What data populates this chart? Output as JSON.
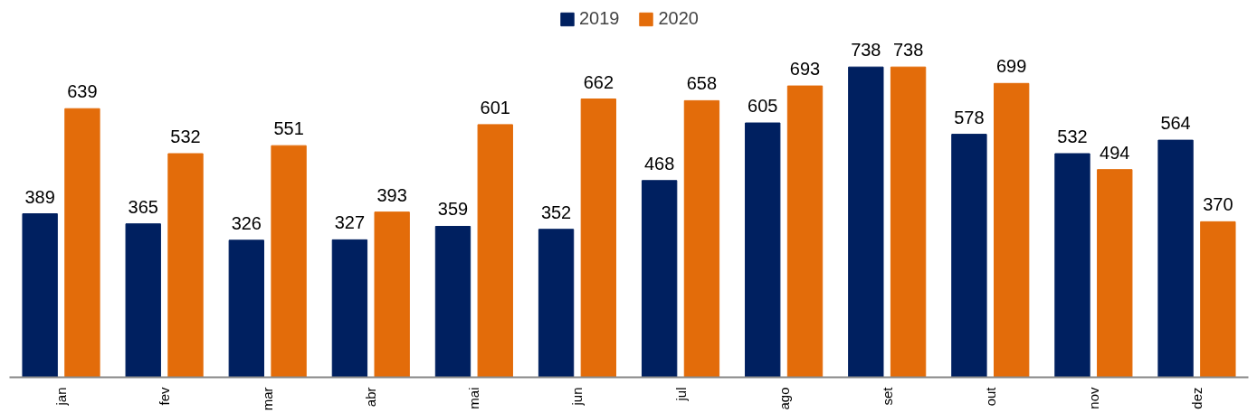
{
  "chart_data": {
    "type": "bar",
    "categories": [
      "jan",
      "fev",
      "mar",
      "abr",
      "mai",
      "jun",
      "jul",
      "ago",
      "set",
      "out",
      "nov",
      "dez"
    ],
    "series": [
      {
        "name": "2019",
        "color": "#002060",
        "values": [
          389,
          365,
          326,
          327,
          359,
          352,
          468,
          605,
          738,
          578,
          532,
          564
        ]
      },
      {
        "name": "2020",
        "color": "#e36c0a",
        "values": [
          639,
          532,
          551,
          393,
          601,
          662,
          658,
          693,
          738,
          699,
          494,
          370
        ]
      }
    ],
    "data_labels": true,
    "legend": "top",
    "grid": false,
    "tick_labels": "x"
  }
}
